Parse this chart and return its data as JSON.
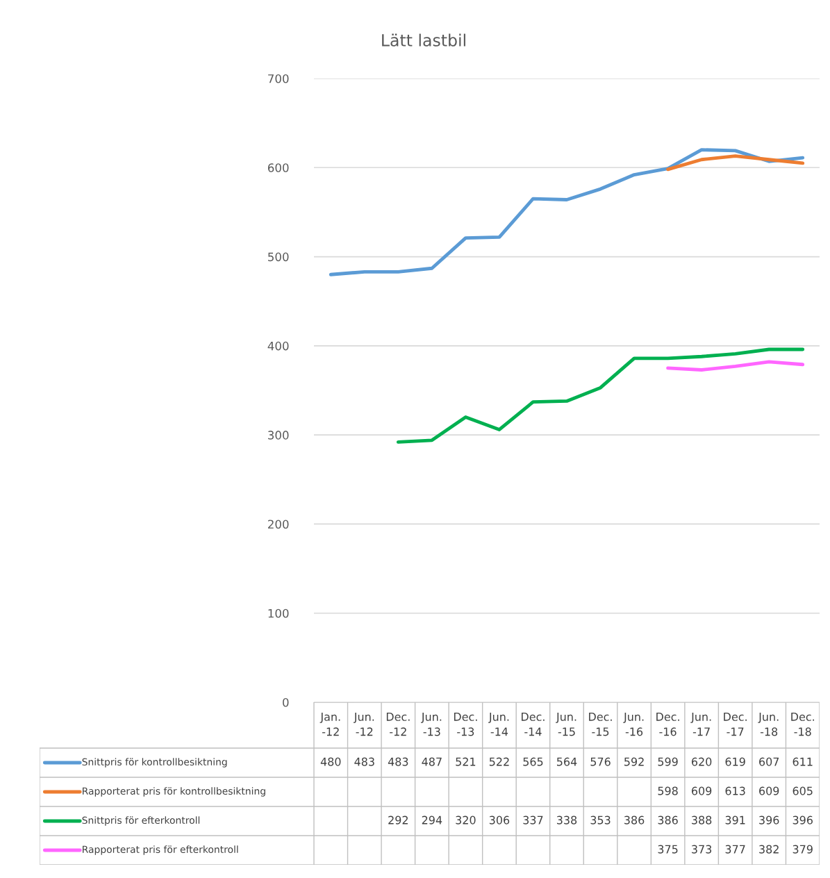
{
  "chart_data": {
    "type": "line",
    "title": "Lätt lastbil",
    "categories": [
      "Jan.\n-12",
      "Jun.\n-12",
      "Dec.\n-12",
      "Jun.\n-13",
      "Dec.\n-13",
      "Jun.\n-14",
      "Dec.\n-14",
      "Jun.\n-15",
      "Dec.\n-15",
      "Jun.\n-16",
      "Dec.\n-16",
      "Jun.\n-17",
      "Dec.\n-17",
      "Jun.\n-18",
      "Dec.\n-18"
    ],
    "series": [
      {
        "name": "Snittpris för kontrollbesiktning",
        "color": "#5b9bd5",
        "values": [
          480,
          483,
          483,
          487,
          521,
          522,
          565,
          564,
          576,
          592,
          599,
          620,
          619,
          607,
          611
        ]
      },
      {
        "name": "Rapporterat pris för kontrollbesiktning",
        "color": "#ed7d31",
        "values": [
          null,
          null,
          null,
          null,
          null,
          null,
          null,
          null,
          null,
          null,
          598,
          609,
          613,
          609,
          605
        ]
      },
      {
        "name": "Snittpris för efterkontroll",
        "color": "#00b050",
        "values": [
          null,
          null,
          292,
          294,
          320,
          306,
          337,
          338,
          353,
          386,
          386,
          388,
          391,
          396,
          396
        ]
      },
      {
        "name": "Rapporterat pris för efterkontroll",
        "color": "#ff66ff",
        "values": [
          null,
          null,
          null,
          null,
          null,
          null,
          null,
          null,
          null,
          null,
          375,
          373,
          377,
          382,
          379
        ]
      }
    ],
    "ylim": [
      0,
      700
    ],
    "yticks": [
      0,
      100,
      200,
      300,
      400,
      500,
      600,
      700
    ],
    "grid": "y",
    "legend": "bottom",
    "data_labels": true
  }
}
